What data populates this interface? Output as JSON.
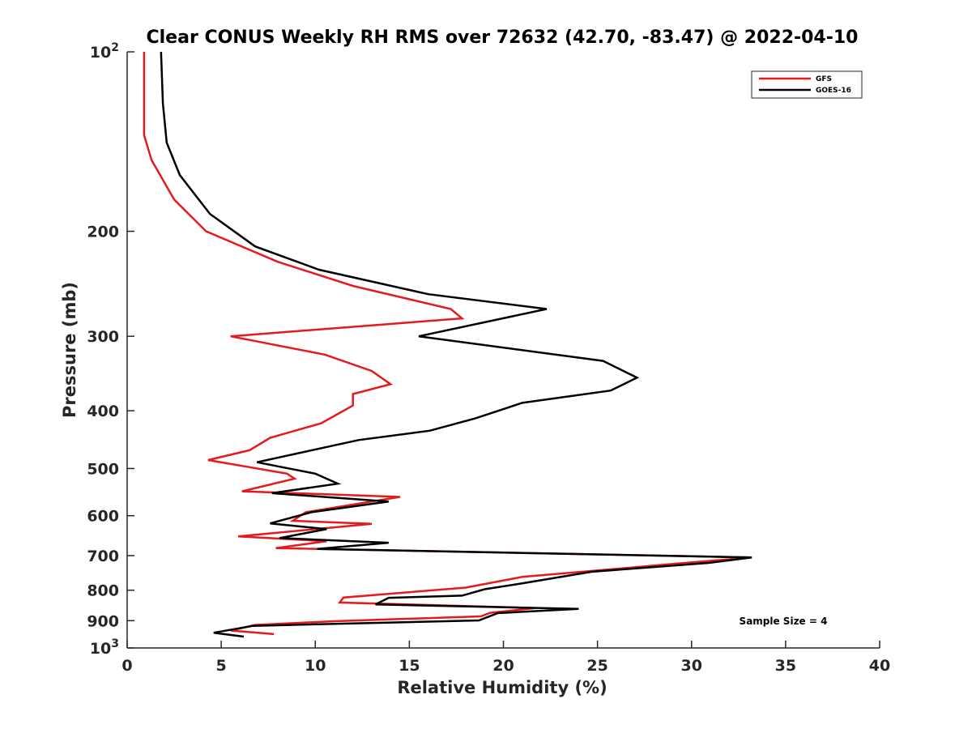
{
  "chart_data": {
    "type": "line",
    "title": "Clear CONUS Weekly RH RMS over 72632 (42.70, -83.47) @ 2022-04-10",
    "xlabel": "Relative Humidity (%)",
    "ylabel": "Pressure (mb)",
    "xlim": [
      0,
      40
    ],
    "ylim": [
      100,
      1000
    ],
    "y_scale": "log",
    "y_reversed": true,
    "x_ticks": [
      0,
      5,
      10,
      15,
      20,
      25,
      30,
      35,
      40
    ],
    "x_tick_labels": [
      "0",
      "5",
      "10",
      "15",
      "20",
      "25",
      "30",
      "35",
      "40"
    ],
    "y_ticks": [
      100,
      200,
      300,
      400,
      500,
      600,
      700,
      800,
      900,
      1000
    ],
    "y_tick_labels": [
      {
        "base": "10",
        "exp": "2"
      },
      {
        "base": "200",
        "exp": ""
      },
      {
        "base": "300",
        "exp": ""
      },
      {
        "base": "400",
        "exp": ""
      },
      {
        "base": "500",
        "exp": ""
      },
      {
        "base": "600",
        "exp": ""
      },
      {
        "base": "700",
        "exp": ""
      },
      {
        "base": "800",
        "exp": ""
      },
      {
        "base": "900",
        "exp": ""
      },
      {
        "base": "10",
        "exp": "3"
      }
    ],
    "grid": false,
    "legend_position": "top-right",
    "annotation": "Sample Size = 4",
    "series": [
      {
        "name": "GFS",
        "color": "#e41a1c",
        "points": [
          [
            0.9,
            100
          ],
          [
            0.9,
            122
          ],
          [
            0.9,
            138
          ],
          [
            1.3,
            152
          ],
          [
            2.5,
            177
          ],
          [
            4.2,
            200
          ],
          [
            8.0,
            225
          ],
          [
            12.0,
            247
          ],
          [
            17.2,
            270
          ],
          [
            17.8,
            280
          ],
          [
            5.5,
            300
          ],
          [
            10.5,
            322
          ],
          [
            13.0,
            343
          ],
          [
            14.0,
            361
          ],
          [
            12.0,
            375
          ],
          [
            12.0,
            392
          ],
          [
            10.3,
            420
          ],
          [
            7.6,
            444
          ],
          [
            6.5,
            466
          ],
          [
            4.3,
            484
          ],
          [
            8.5,
            510
          ],
          [
            8.9,
            520
          ],
          [
            6.1,
            546
          ],
          [
            14.5,
            558
          ],
          [
            9.5,
            592
          ],
          [
            8.8,
            612
          ],
          [
            13.0,
            619
          ],
          [
            5.9,
            650
          ],
          [
            10.6,
            662
          ],
          [
            7.9,
            680
          ],
          [
            33.2,
            705
          ],
          [
            29.0,
            723
          ],
          [
            21.0,
            760
          ],
          [
            18.0,
            792
          ],
          [
            11.5,
            823
          ],
          [
            11.3,
            839
          ],
          [
            21.7,
            857
          ],
          [
            19.3,
            873
          ],
          [
            18.8,
            885
          ],
          [
            11.0,
            902
          ],
          [
            6.8,
            915
          ],
          [
            5.5,
            935
          ],
          [
            7.8,
            948
          ]
        ]
      },
      {
        "name": "GOES-16",
        "color": "#000000",
        "points": [
          [
            1.8,
            100
          ],
          [
            1.9,
            122
          ],
          [
            2.1,
            142
          ],
          [
            2.8,
            161
          ],
          [
            4.4,
            187
          ],
          [
            6.8,
            212
          ],
          [
            10.2,
            232
          ],
          [
            16.0,
            255
          ],
          [
            22.3,
            270
          ],
          [
            15.5,
            300
          ],
          [
            25.3,
            330
          ],
          [
            27.1,
            352
          ],
          [
            25.7,
            370
          ],
          [
            21.0,
            388
          ],
          [
            18.5,
            412
          ],
          [
            16.1,
            432
          ],
          [
            12.3,
            448
          ],
          [
            6.9,
            488
          ],
          [
            10.0,
            510
          ],
          [
            11.2,
            530
          ],
          [
            7.7,
            550
          ],
          [
            13.9,
            568
          ],
          [
            9.8,
            592
          ],
          [
            7.6,
            618
          ],
          [
            10.6,
            632
          ],
          [
            8.1,
            654
          ],
          [
            13.9,
            666
          ],
          [
            10.1,
            682
          ],
          [
            33.2,
            705
          ],
          [
            30.9,
            720
          ],
          [
            24.7,
            745
          ],
          [
            20.9,
            780
          ],
          [
            19.0,
            797
          ],
          [
            17.8,
            817
          ],
          [
            13.9,
            824
          ],
          [
            13.2,
            845
          ],
          [
            24.0,
            860
          ],
          [
            19.7,
            874
          ],
          [
            18.7,
            899
          ],
          [
            6.7,
            918
          ],
          [
            4.6,
            943
          ],
          [
            6.2,
            957
          ]
        ]
      }
    ]
  }
}
